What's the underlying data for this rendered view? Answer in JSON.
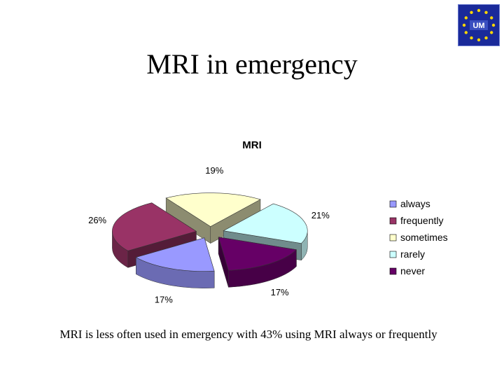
{
  "slide": {
    "title": "MRI in emergency",
    "caption": "MRI is less often used in emergency with 43% using MRI always or frequently",
    "logo_text": "UM"
  },
  "chart_data": {
    "type": "pie",
    "title": "MRI",
    "categories": [
      "always",
      "frequently",
      "sometimes",
      "rarely",
      "never"
    ],
    "values": [
      17,
      26,
      19,
      21,
      17
    ],
    "labels": [
      "17%",
      "26%",
      "19%",
      "21%",
      "17%"
    ],
    "colors": [
      "#9999ff",
      "#993366",
      "#ffffcc",
      "#ccffff",
      "#660066"
    ],
    "legend_position": "right",
    "style": "3d-exploded"
  }
}
